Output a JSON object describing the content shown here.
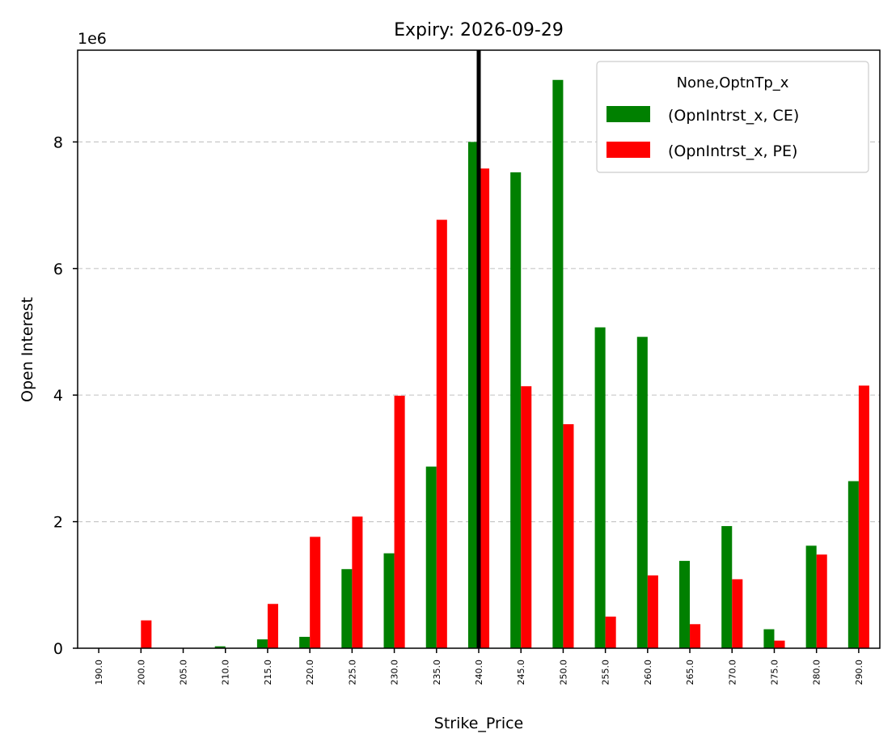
{
  "chart_data": {
    "type": "bar",
    "title": "Expiry: 2026-09-29",
    "xlabel": "Strike_Price",
    "ylabel": "Open Interest",
    "y_offset_text": "1e6",
    "ylim": [
      0,
      9.45
    ],
    "yticks": [
      0,
      2,
      4,
      6,
      8
    ],
    "grid": "y-dashed",
    "categories": [
      "190.0",
      "200.0",
      "205.0",
      "210.0",
      "215.0",
      "220.0",
      "225.0",
      "230.0",
      "235.0",
      "240.0",
      "245.0",
      "250.0",
      "255.0",
      "260.0",
      "265.0",
      "270.0",
      "275.0",
      "280.0",
      "290.0"
    ],
    "series": [
      {
        "name": "(OpnIntrst_x, CE)",
        "color": "#008000",
        "values": [
          0,
          0,
          0,
          0.03,
          0.14,
          0.18,
          1.25,
          1.5,
          2.87,
          8.0,
          7.52,
          8.98,
          5.07,
          4.92,
          1.38,
          1.93,
          0.3,
          1.62,
          2.64
        ]
      },
      {
        "name": "(OpnIntrst_x, PE)",
        "color": "#ff0000",
        "values": [
          0,
          0.44,
          0,
          0,
          0.7,
          1.76,
          2.08,
          3.99,
          6.77,
          7.58,
          4.14,
          3.54,
          0.5,
          1.15,
          0.38,
          1.09,
          0.12,
          1.48,
          4.15
        ]
      }
    ],
    "vline": {
      "x_category": "240.0",
      "color": "#000000"
    },
    "legend": {
      "title": "None,OptnTp_x",
      "placement": "top-right"
    }
  }
}
